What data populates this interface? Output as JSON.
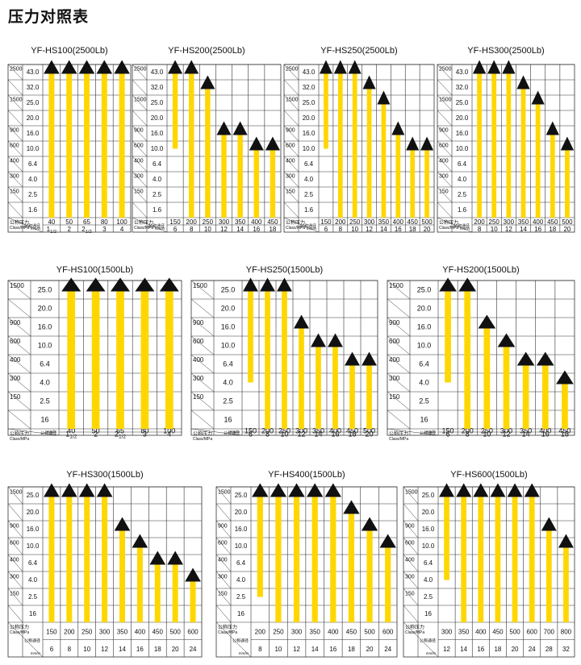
{
  "page": {
    "title": "压力对照表"
  },
  "colors": {
    "bar": "#FFD700",
    "arrow": "#111111",
    "grid": "#333333"
  },
  "labels": {
    "pressure": "公称压力",
    "pressure_units": "Class/MPa",
    "diameter": "公称通径",
    "diameter_unit": "mm/in"
  },
  "chart_data": [
    {
      "type": "bar",
      "title": "YF-HS100(2500Lb)",
      "class_ticks": [
        "2500",
        "",
        "1500",
        "",
        "900",
        "600",
        "400",
        "300",
        "150",
        ""
      ],
      "mpa_ticks": [
        "43.0",
        "32.0",
        "25.0",
        "20.0",
        "16.0",
        "10.0",
        "6.4",
        "4.0",
        "2.5",
        "1.6"
      ],
      "categories_mm": [
        "40",
        "50",
        "65",
        "80",
        "100"
      ],
      "categories_in": [
        "11/2",
        "2",
        "21/2",
        "3",
        "4"
      ],
      "bar_top": [
        "43.0",
        "43.0",
        "43.0",
        "43.0",
        "43.0"
      ],
      "bar_bottom": [
        "1.6",
        "1.6",
        "1.6",
        "1.6",
        "1.6"
      ]
    },
    {
      "type": "bar",
      "title": "YF-HS200(2500Lb)",
      "class_ticks": [
        "2500",
        "",
        "1500",
        "",
        "900",
        "600",
        "400",
        "300",
        "150",
        ""
      ],
      "mpa_ticks": [
        "43.0",
        "32.0",
        "25.0",
        "20.0",
        "16.0",
        "10.0",
        "6.4",
        "4.0",
        "2.5",
        "1.6"
      ],
      "categories_mm": [
        "150",
        "200",
        "250",
        "300",
        "350",
        "400",
        "450"
      ],
      "categories_in": [
        "6",
        "8",
        "10",
        "12",
        "14",
        "16",
        "18"
      ],
      "bar_top": [
        "43.0",
        "43.0",
        "32.0",
        "16.0",
        "16.0",
        "10.0",
        "10.0"
      ],
      "bar_bottom": [
        "10.0",
        "1.6",
        "1.6",
        "1.6",
        "1.6",
        "1.6",
        "1.6"
      ]
    },
    {
      "type": "bar",
      "title": "YF-HS250(2500Lb)",
      "class_ticks": [
        "2500",
        "",
        "1500",
        "",
        "900",
        "600",
        "400",
        "300",
        "150",
        ""
      ],
      "mpa_ticks": [
        "43.0",
        "32.0",
        "25.0",
        "20.0",
        "16.0",
        "10.0",
        "6.4",
        "4.0",
        "2.5",
        "1.6"
      ],
      "categories_mm": [
        "150",
        "200",
        "250",
        "300",
        "350",
        "400",
        "450",
        "500"
      ],
      "categories_in": [
        "6",
        "8",
        "10",
        "12",
        "14",
        "16",
        "18",
        "20"
      ],
      "bar_top": [
        "43.0",
        "43.0",
        "43.0",
        "32.0",
        "25.0",
        "16.0",
        "10.0",
        "10.0"
      ],
      "bar_bottom": [
        "10.0",
        "1.6",
        "1.6",
        "1.6",
        "1.6",
        "1.6",
        "1.6",
        "1.6"
      ]
    },
    {
      "type": "bar",
      "title": "YF-HS300(2500Lb)",
      "class_ticks": [
        "2500",
        "",
        "1500",
        "",
        "900",
        "600",
        "400",
        "300",
        "150",
        ""
      ],
      "mpa_ticks": [
        "43.0",
        "32.0",
        "25.0",
        "20.0",
        "16.0",
        "10.0",
        "6.4",
        "4.0",
        "2.5",
        "1.6"
      ],
      "categories_mm": [
        "200",
        "250",
        "300",
        "350",
        "400",
        "450",
        "500"
      ],
      "categories_in": [
        "8",
        "10",
        "12",
        "14",
        "16",
        "18",
        "20"
      ],
      "bar_top": [
        "43.0",
        "43.0",
        "43.0",
        "32.0",
        "25.0",
        "16.0",
        "10.0"
      ],
      "bar_bottom": [
        "1.6",
        "1.6",
        "1.6",
        "1.6",
        "1.6",
        "1.6",
        "1.6"
      ]
    },
    {
      "type": "bar",
      "title": "YF-HS100(1500Lb)",
      "class_ticks": [
        "1500",
        "",
        "900",
        "600",
        "400",
        "300",
        "150",
        ""
      ],
      "mpa_ticks": [
        "25.0",
        "20.0",
        "16.0",
        "10.0",
        "6.4",
        "4.0",
        "2.5",
        "16"
      ],
      "categories_mm": [
        "40",
        "50",
        "65",
        "80",
        "100"
      ],
      "categories_in": [
        "11/2",
        "2",
        "21/2",
        "3",
        "4"
      ],
      "bar_top": [
        "25.0",
        "25.0",
        "25.0",
        "25.0",
        "25.0"
      ],
      "bar_bottom": [
        "16",
        "16",
        "16",
        "16",
        "16"
      ]
    },
    {
      "type": "bar",
      "title": "YF-HS250(1500Lb)",
      "class_ticks": [
        "1500",
        "",
        "900",
        "600",
        "400",
        "300",
        "150",
        ""
      ],
      "mpa_ticks": [
        "25.0",
        "20.0",
        "16.0",
        "10.0",
        "6.4",
        "4.0",
        "2.5",
        "16"
      ],
      "categories_mm": [
        "150",
        "200",
        "250",
        "300",
        "350",
        "400",
        "450",
        "500"
      ],
      "categories_in": [
        "6",
        "8",
        "10",
        "12",
        "14",
        "16",
        "18",
        "20"
      ],
      "bar_top": [
        "25.0",
        "25.0",
        "25.0",
        "16.0",
        "10.0",
        "10.0",
        "6.4",
        "6.4"
      ],
      "bar_bottom": [
        "4.0",
        "16",
        "16",
        "16",
        "16",
        "16",
        "16",
        "16"
      ]
    },
    {
      "type": "bar",
      "title": "YF-HS200(1500Lb)",
      "class_ticks": [
        "1500",
        "",
        "900",
        "600",
        "400",
        "300",
        "150",
        ""
      ],
      "mpa_ticks": [
        "25.0",
        "20.0",
        "16.0",
        "10.0",
        "6.4",
        "4.0",
        "2.5",
        "16"
      ],
      "categories_mm": [
        "150",
        "200",
        "250",
        "300",
        "350",
        "400",
        "450"
      ],
      "categories_in": [
        "6",
        "8",
        "10",
        "12",
        "14",
        "16",
        "18"
      ],
      "bar_top": [
        "25.0",
        "25.0",
        "16.0",
        "10.0",
        "6.4",
        "6.4",
        "4.0"
      ],
      "bar_bottom": [
        "4.0",
        "16",
        "16",
        "16",
        "16",
        "16",
        "16"
      ]
    },
    {
      "type": "bar",
      "title": "YF-HS300(1500Lb)",
      "class_ticks": [
        "1500",
        "",
        "900",
        "600",
        "400",
        "300",
        "150",
        ""
      ],
      "mpa_ticks": [
        "25.0",
        "20.0",
        "16.0",
        "10.0",
        "6.4",
        "4.0",
        "2.5",
        "16"
      ],
      "categories_mm": [
        "150",
        "200",
        "250",
        "300",
        "350",
        "400",
        "450",
        "500",
        "600"
      ],
      "categories_in": [
        "6",
        "8",
        "10",
        "12",
        "14",
        "16",
        "18",
        "20",
        "24"
      ],
      "bar_top": [
        "25.0",
        "25.0",
        "25.0",
        "25.0",
        "16.0",
        "10.0",
        "6.4",
        "6.4",
        "4.0"
      ],
      "bar_bottom": [
        "16",
        "16",
        "16",
        "16",
        "16",
        "16",
        "16",
        "16",
        "16"
      ]
    },
    {
      "type": "bar",
      "title": "YF-HS400(1500Lb)",
      "class_ticks": [
        "1500",
        "",
        "900",
        "600",
        "400",
        "300",
        "150",
        ""
      ],
      "mpa_ticks": [
        "25.0",
        "20.0",
        "16.0",
        "10.0",
        "6.4",
        "4.0",
        "2.5",
        "16"
      ],
      "categories_mm": [
        "200",
        "250",
        "300",
        "350",
        "400",
        "450",
        "500",
        "600"
      ],
      "categories_in": [
        "8",
        "10",
        "12",
        "14",
        "16",
        "18",
        "20",
        "24"
      ],
      "bar_top": [
        "25.0",
        "25.0",
        "25.0",
        "25.0",
        "25.0",
        "20.0",
        "16.0",
        "10.0"
      ],
      "bar_bottom": [
        "2.5",
        "16",
        "16",
        "16",
        "16",
        "16",
        "16",
        "16"
      ]
    },
    {
      "type": "bar",
      "title": "YF-HS600(1500Lb)",
      "class_ticks": [
        "1500",
        "",
        "900",
        "600",
        "400",
        "300",
        "150",
        ""
      ],
      "mpa_ticks": [
        "25.0",
        "20.0",
        "16.0",
        "10.0",
        "6.4",
        "4.0",
        "2.5",
        "16"
      ],
      "categories_mm": [
        "300",
        "350",
        "400",
        "450",
        "500",
        "600",
        "700",
        "800"
      ],
      "categories_in": [
        "12",
        "14",
        "16",
        "18",
        "20",
        "24",
        "28",
        "32"
      ],
      "bar_top": [
        "25.0",
        "25.0",
        "25.0",
        "25.0",
        "25.0",
        "25.0",
        "16.0",
        "10.0"
      ],
      "bar_bottom": [
        "4.0",
        "16",
        "16",
        "16",
        "16",
        "16",
        "16",
        "16"
      ]
    }
  ]
}
